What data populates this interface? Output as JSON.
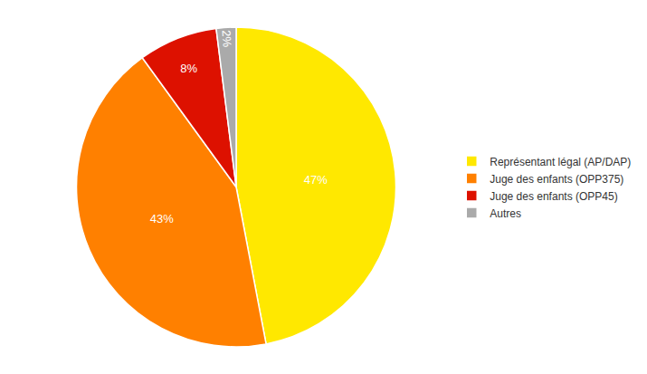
{
  "chart_data": {
    "type": "pie",
    "categories": [
      "Représentant légal (AP/DAP)",
      "Juge des enfants (OPP375)",
      "Juge des enfants (OPP45)",
      "Autres"
    ],
    "values": [
      47,
      43,
      8,
      2
    ],
    "value_labels": [
      "47%",
      "43%",
      "8%",
      "2%"
    ],
    "colors": [
      "#FFE800",
      "#FF8000",
      "#DD1100",
      "#AAAAAA"
    ],
    "data_labels": true,
    "legend": "right"
  }
}
